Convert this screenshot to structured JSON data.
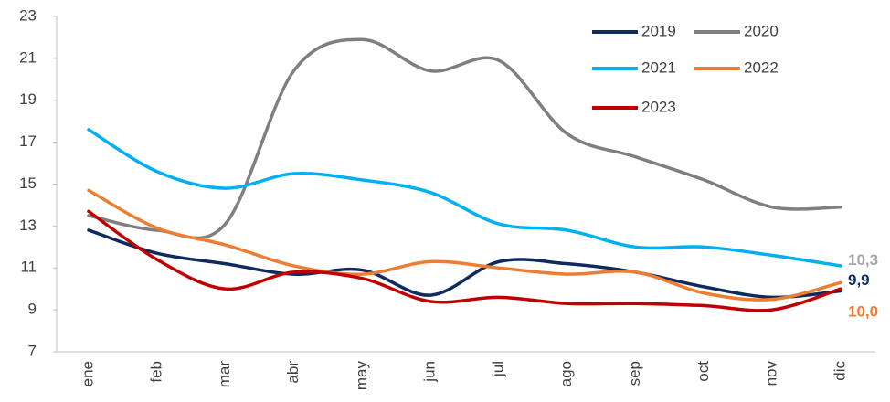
{
  "chart_data": {
    "type": "line",
    "categories": [
      "ene",
      "feb",
      "mar",
      "abr",
      "may",
      "jun",
      "jul",
      "ago",
      "sep",
      "oct",
      "nov",
      "dic"
    ],
    "series": [
      {
        "name": "2019",
        "color": "#0f2a5e",
        "values": [
          12.8,
          11.7,
          11.2,
          10.7,
          10.9,
          9.7,
          11.3,
          11.2,
          10.8,
          10.1,
          9.6,
          9.9
        ],
        "value_labels": [
          null,
          null,
          null,
          null,
          null,
          null,
          null,
          null,
          null,
          null,
          null,
          "9,9"
        ],
        "label_color": "#0f2a5e"
      },
      {
        "name": "2020",
        "color": "#7f7f7f",
        "values": [
          13.5,
          12.8,
          13.1,
          20.4,
          21.9,
          20.4,
          20.9,
          17.4,
          16.3,
          15.2,
          13.9,
          13.9
        ]
      },
      {
        "name": "2021",
        "color": "#00b0f0",
        "values": [
          17.6,
          15.6,
          14.8,
          15.5,
          15.2,
          14.6,
          13.1,
          12.8,
          12.0,
          12.0,
          11.6,
          11.1
        ]
      },
      {
        "name": "2022",
        "color": "#ed7d31",
        "values": [
          14.7,
          12.9,
          12.1,
          11.1,
          10.7,
          11.3,
          11.0,
          10.7,
          10.8,
          9.8,
          9.5,
          10.3
        ],
        "value_labels": [
          null,
          null,
          null,
          null,
          null,
          null,
          null,
          null,
          null,
          null,
          null,
          "10,3"
        ],
        "label_color": "#a6a6a6"
      },
      {
        "name": "2023",
        "color": "#c00000",
        "values": [
          13.7,
          11.4,
          10.0,
          10.8,
          10.5,
          9.4,
          9.6,
          9.3,
          9.3,
          9.2,
          9.0,
          10.0
        ],
        "value_labels": [
          null,
          null,
          null,
          null,
          null,
          null,
          null,
          null,
          null,
          null,
          null,
          "10,0"
        ],
        "label_color": "#ed7d31"
      }
    ],
    "ylim": [
      7,
      23
    ],
    "yticks": [
      7,
      9,
      11,
      13,
      15,
      17,
      19,
      21,
      23
    ],
    "grid": false,
    "legend": "upper right"
  }
}
